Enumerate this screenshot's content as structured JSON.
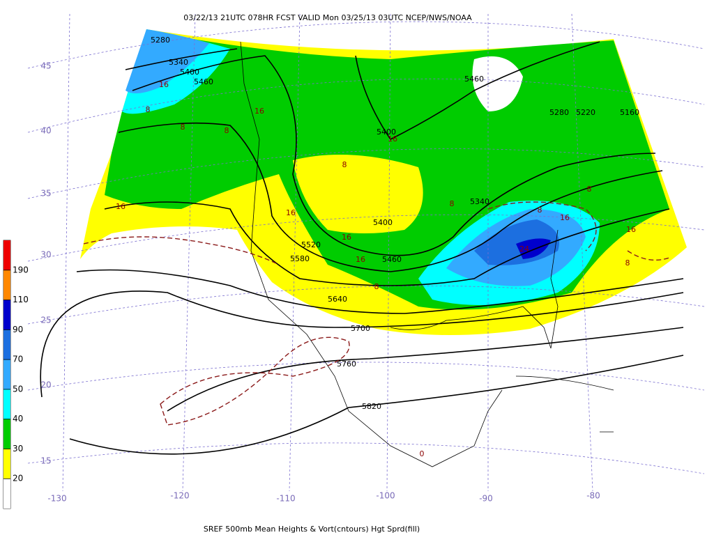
{
  "header": {
    "title": "03/22/13 21UTC  078HR  FCST VALID Mon 03/25/13 03UTC  NCEP/NWS/NOAA"
  },
  "footer": {
    "caption": "SREF 500mb Mean Heights & Vort(cntours) Hgt Sprd(fill)"
  },
  "latitudes": [
    45,
    40,
    35,
    30,
    25,
    20,
    15
  ],
  "longitudes": [
    -130,
    -120,
    -110,
    -100,
    -90,
    -80
  ],
  "colorbar": {
    "levels": [
      20,
      30,
      40,
      50,
      70,
      90,
      110,
      190
    ],
    "colors": [
      "#ffffff",
      "#ffff00",
      "#00cc00",
      "#00ffff",
      "#33aaff",
      "#1c6fe0",
      "#0000cc",
      "#ff8800",
      "#ee0000"
    ]
  },
  "contours": {
    "heights": [
      5280,
      5340,
      5400,
      5460,
      5460,
      5400,
      5400,
      5520,
      5580,
      5460,
      5340,
      5640,
      5700,
      5760,
      5820,
      5280,
      5220,
      5160
    ],
    "vorticity": [
      16,
      8,
      16,
      8,
      8,
      16,
      16,
      16,
      16,
      8,
      16,
      8,
      24,
      8,
      16,
      8,
      8,
      16,
      8,
      0
    ]
  }
}
